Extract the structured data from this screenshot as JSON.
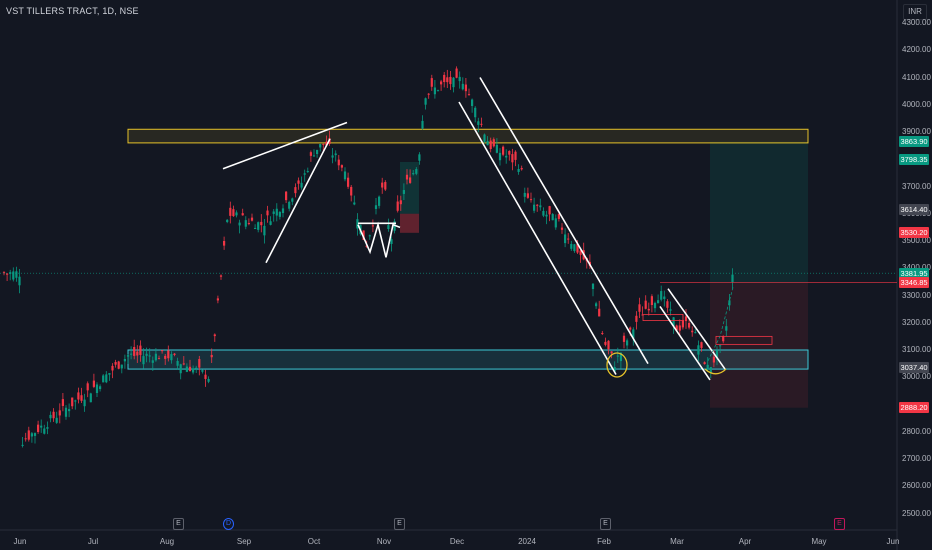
{
  "header": {
    "symbol": "VST TILLERS TRACT, 1D, NSE",
    "currency": "INR"
  },
  "price_axis": {
    "ticks": [
      "4300.00",
      "4200.00",
      "4100.00",
      "4000.00",
      "3900.00",
      "3700.00",
      "3600.00",
      "3500.00",
      "3400.00",
      "3300.00",
      "3200.00",
      "3100.00",
      "3000.00",
      "2800.00",
      "2700.00",
      "2600.00",
      "2500.00"
    ],
    "tick_values": [
      4300,
      4200,
      4100,
      4000,
      3900,
      3700,
      3600,
      3500,
      3400,
      3300,
      3200,
      3100,
      3000,
      2800,
      2700,
      2600,
      2500
    ],
    "tags": [
      {
        "label": "3863.90",
        "value": 3863.9,
        "color": "#089981"
      },
      {
        "label": "3798.35",
        "value": 3798.35,
        "color": "#089981"
      },
      {
        "label": "3614.40",
        "value": 3614.4,
        "color": "#434651"
      },
      {
        "label": "3530.20",
        "value": 3530.2,
        "color": "#f23645"
      },
      {
        "label": "3381.95",
        "value": 3381.95,
        "color": "#089981"
      },
      {
        "label": "3346.85",
        "value": 3346.85,
        "color": "#f23645"
      },
      {
        "label": "3037.40",
        "value": 3037.4,
        "color": "#434651"
      },
      {
        "label": "2888.20",
        "value": 2888.2,
        "color": "#f23645"
      }
    ]
  },
  "time_axis": [
    "Jun",
    "Jul",
    "Aug",
    "Sep",
    "Oct",
    "Nov",
    "Dec",
    "2024",
    "Feb",
    "Mar",
    "Apr",
    "May",
    "Jun"
  ],
  "events": [
    {
      "label": "E",
      "type": "earnings"
    },
    {
      "label": "D",
      "type": "dividend"
    },
    {
      "label": "E",
      "type": "earnings"
    },
    {
      "label": "E",
      "type": "earnings"
    },
    {
      "label": "E",
      "type": "upcoming"
    }
  ],
  "chart_data": {
    "type": "candlestick",
    "symbol": "VST TILLERS TRACT",
    "interval": "1D",
    "exchange": "NSE",
    "currency": "INR",
    "ylim": [
      2500,
      4300
    ],
    "key_closes": [
      {
        "date": "Jun",
        "close": 2760
      },
      {
        "date": "Jul",
        "close": 2960
      },
      {
        "date": "Aug",
        "close": 3080
      },
      {
        "date": "Sep",
        "close": 3580
      },
      {
        "date": "Oct",
        "close": 3830
      },
      {
        "date": "Nov",
        "close": 3720
      },
      {
        "date": "Dec",
        "close": 4080
      },
      {
        "date": "2024",
        "close": 3650
      },
      {
        "date": "Feb",
        "close": 3130
      },
      {
        "date": "Mar",
        "close": 3180
      },
      {
        "date": "Apr",
        "close": 3381.95
      }
    ],
    "levels": {
      "last_price": 3381.95,
      "resistance_zone": [
        3860,
        3910
      ],
      "support_zone": [
        3030,
        3100
      ],
      "position_entry": 3346.85,
      "position_target": 3863.9,
      "position_stop": 2888.2
    },
    "colors": {
      "up": "#089981",
      "down": "#f23645",
      "zone_yellow": "#e6c229",
      "zone_teal": "#3cc8d6"
    }
  }
}
